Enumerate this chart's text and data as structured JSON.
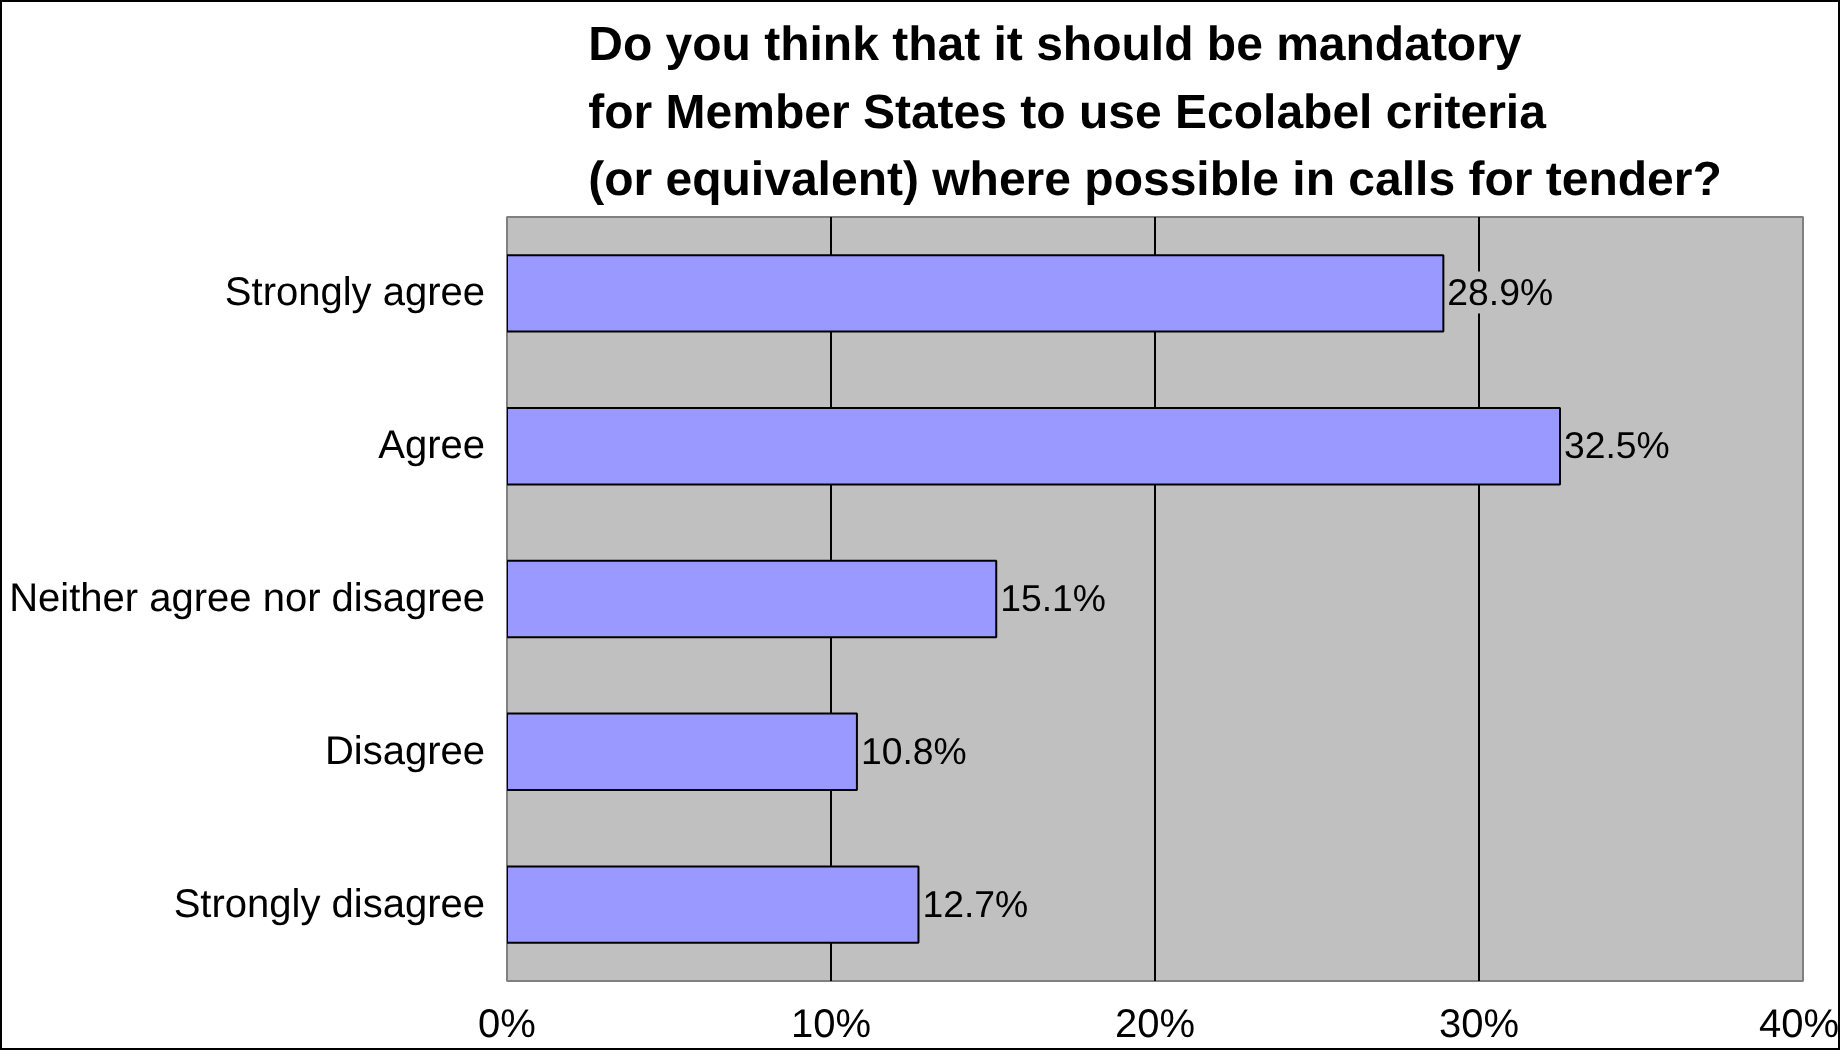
{
  "chart_data": {
    "type": "bar",
    "orientation": "horizontal",
    "title": "Do you think that it should be mandatory\nfor Member States to  use Ecolabel criteria\n(or equivalent) where possible in calls for tender?",
    "categories": [
      "Strongly agree",
      "Agree",
      "Neither agree nor disagree",
      "Disagree",
      "Strongly disagree"
    ],
    "values": [
      28.9,
      32.5,
      15.1,
      10.8,
      12.7
    ],
    "value_labels": [
      "28.9%",
      "32.5%",
      "15.1%",
      "10.8%",
      "12.7%"
    ],
    "color": "#9999ff",
    "xlim": [
      0,
      40
    ],
    "xticks": [
      {
        "value": 0,
        "label": "0%"
      },
      {
        "value": 10,
        "label": "10%"
      },
      {
        "value": 20,
        "label": "20%"
      },
      {
        "value": 30,
        "label": "30%"
      },
      {
        "value": 40,
        "label": "40%"
      }
    ],
    "grid": "x"
  }
}
